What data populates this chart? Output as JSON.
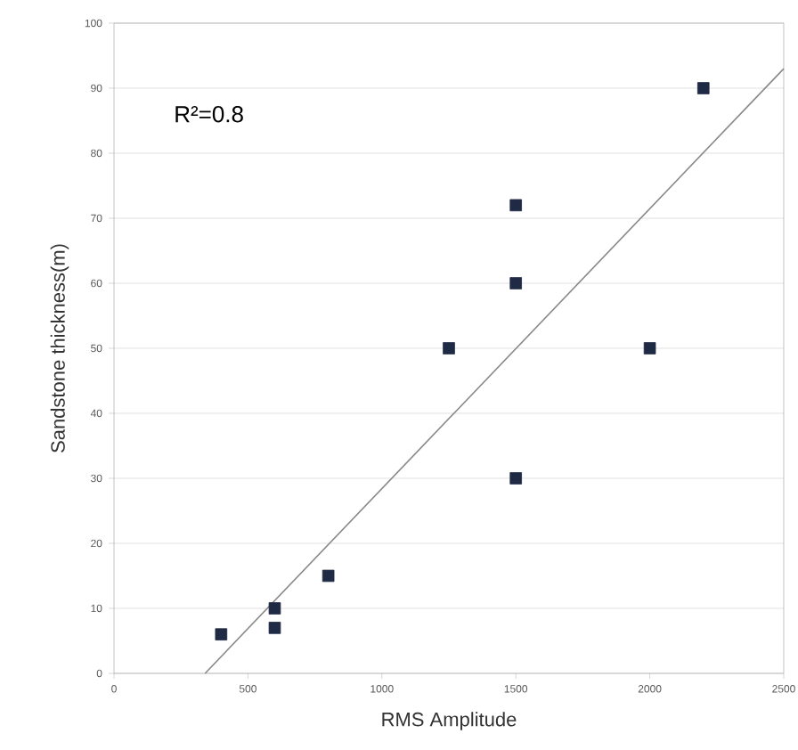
{
  "chart_data": {
    "type": "scatter",
    "xlabel": "RMS Amplitude",
    "ylabel": "Sandstone thickness(m)",
    "xlim": [
      0,
      2500
    ],
    "ylim": [
      0,
      100
    ],
    "xticks": [
      0,
      500,
      1000,
      1500,
      2000,
      2500
    ],
    "yticks": [
      0,
      10,
      20,
      30,
      40,
      50,
      60,
      70,
      80,
      90,
      100
    ],
    "grid": "y",
    "marker": "square",
    "annotations": [
      "R²=0.8"
    ],
    "series": [
      {
        "color": "#1f2a44",
        "x": [
          400,
          600,
          600,
          800,
          1250,
          1500,
          1500,
          1500,
          2000,
          2200
        ],
        "values": [
          6,
          10,
          7,
          15,
          50,
          72,
          60,
          30,
          50,
          90
        ]
      },
      {
        "type": "line",
        "color": "#888888",
        "marker": "none",
        "x": [
          340,
          2500
        ],
        "values": [
          0,
          93
        ]
      }
    ]
  }
}
